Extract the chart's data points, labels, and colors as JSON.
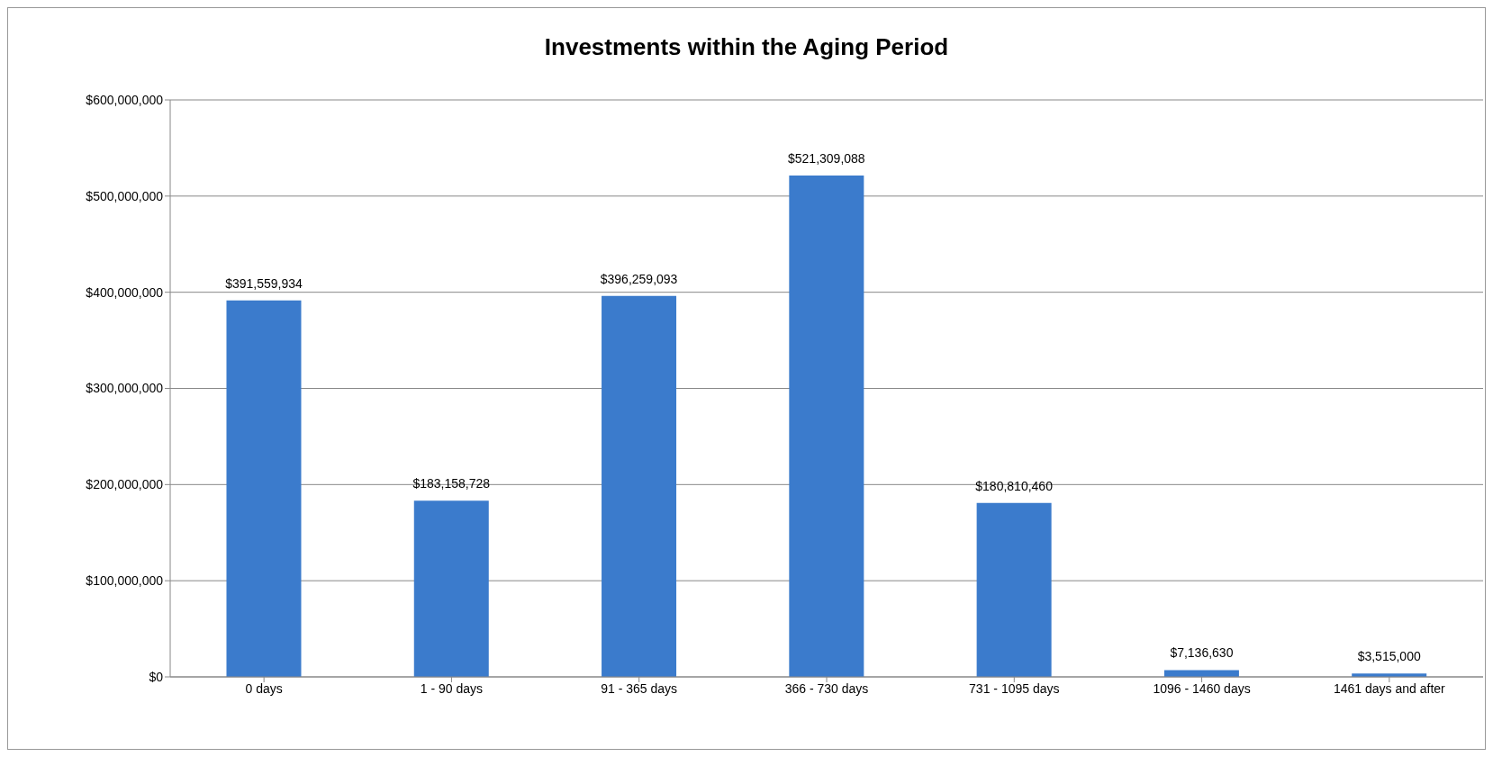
{
  "chart_data": {
    "type": "bar",
    "title": "Investments within the Aging Period",
    "categories": [
      "0 days",
      "1 - 90 days",
      "91 - 365 days",
      "366 - 730 days",
      "731 - 1095 days",
      "1096 - 1460 days",
      "1461 days and after"
    ],
    "values": [
      391559934,
      183158728,
      396259093,
      521309088,
      180810460,
      7136630,
      3515000
    ],
    "value_labels": [
      "$391,559,934",
      "$183,158,728",
      "$396,259,093",
      "$521,309,088",
      "$180,810,460",
      "$7,136,630",
      "$3,515,000"
    ],
    "color": "#3b7bcc",
    "ylim": [
      0,
      600000000
    ],
    "yticks": [
      {
        "value": 0,
        "label": "$0"
      },
      {
        "value": 100000000,
        "label": "$100,000,000"
      },
      {
        "value": 200000000,
        "label": "$200,000,000"
      },
      {
        "value": 300000000,
        "label": "$300,000,000"
      },
      {
        "value": 400000000,
        "label": "$400,000,000"
      },
      {
        "value": 500000000,
        "label": "$500,000,000"
      },
      {
        "value": 600000000,
        "label": "$600,000,000"
      }
    ],
    "grid": "y",
    "legend": false
  }
}
